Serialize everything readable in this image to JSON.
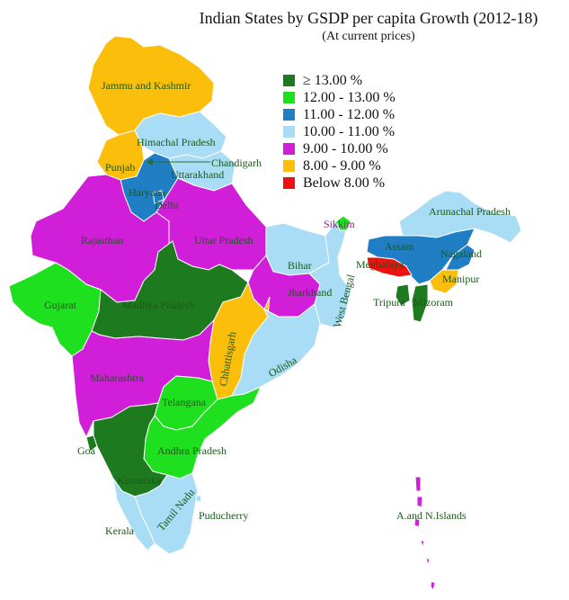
{
  "title": "Indian States by GSDP per capita Growth (2012-18)",
  "subtitle": "(At current prices)",
  "colors": {
    "c13plus": "#1e7a1e",
    "c12_13": "#1fe01f",
    "c11_12": "#1f7ec4",
    "c10_11": "#a9dcf5",
    "c9_10": "#d11fd9",
    "c8_9": "#fbbf0b",
    "below8": "#ef1010"
  },
  "legend": [
    {
      "label": "≥ 13.00 %",
      "color": "#1e7a1e"
    },
    {
      "label": "12.00 - 13.00 %",
      "color": "#1fe01f"
    },
    {
      "label": "11.00 - 12.00 %",
      "color": "#1f7ec4"
    },
    {
      "label": "10.00 - 11.00 %",
      "color": "#a9dcf5"
    },
    {
      "label": "9.00 - 10.00 %",
      "color": "#d11fd9"
    },
    {
      "label": "8.00 - 9.00 %",
      "color": "#fbbf0b"
    },
    {
      "label": "Below 8.00 %",
      "color": "#ef1010"
    }
  ],
  "regions": {
    "jk": {
      "name": "Jammu and Kashmir",
      "category": "8.00 - 9.00 %"
    },
    "hp": {
      "name": "Himachal Pradesh",
      "category": "10.00 - 11.00 %"
    },
    "pb": {
      "name": "Punjab",
      "category": "8.00 - 9.00 %"
    },
    "ch": {
      "name": "Chandigarh",
      "category": "10.00 - 11.00 %"
    },
    "uk": {
      "name": "Uttarakhand",
      "category": "10.00 - 11.00 %"
    },
    "hr": {
      "name": "Haryana",
      "category": "11.00 - 12.00 %"
    },
    "dl": {
      "name": "Delhi",
      "category": "11.00 - 12.00 %"
    },
    "rj": {
      "name": "Rajasthan",
      "category": "9.00 - 10.00 %"
    },
    "up": {
      "name": "Uttar Pradesh",
      "category": "9.00 - 10.00 %"
    },
    "gj": {
      "name": "Gujarat",
      "category": "12.00 - 13.00 %"
    },
    "mp": {
      "name": "Madhya Pradesh",
      "category": "≥ 13.00 %"
    },
    "br": {
      "name": "Bihar",
      "category": "10.00 - 11.00 %"
    },
    "jh": {
      "name": "Jharkhand",
      "category": "9.00 - 10.00 %"
    },
    "wb": {
      "name": "West Bengal",
      "category": "10.00 - 11.00 %"
    },
    "cg": {
      "name": "Chhattisgarh",
      "category": "8.00 - 9.00 %"
    },
    "od": {
      "name": "Odisha",
      "category": "10.00 - 11.00 %"
    },
    "mh": {
      "name": "Maharashtra",
      "category": "9.00 - 10.00 %"
    },
    "tg": {
      "name": "Telangana",
      "category": "12.00 - 13.00 %"
    },
    "ap": {
      "name": "Andhra Pradesh",
      "category": "12.00 - 13.00 %"
    },
    "ga": {
      "name": "Goa",
      "category": "≥ 13.00 %"
    },
    "ka": {
      "name": "Karnataka",
      "category": "≥ 13.00 %"
    },
    "tn": {
      "name": "Tamil Nadu",
      "category": "10.00 - 11.00 %"
    },
    "kl": {
      "name": "Kerala",
      "category": "10.00 - 11.00 %"
    },
    "py": {
      "name": "Puducherry",
      "category": "10.00 - 11.00 %"
    },
    "sk": {
      "name": "Sikkim",
      "category": "12.00 - 13.00 %"
    },
    "ar": {
      "name": "Arunachal Pradesh",
      "category": "10.00 - 11.00 %"
    },
    "as": {
      "name": "Assam",
      "category": "11.00 - 12.00 %"
    },
    "ml": {
      "name": "Meghalaya",
      "category": "Below 8.00 %"
    },
    "nl": {
      "name": "Nagaland",
      "category": "11.00 - 12.00 %"
    },
    "mn": {
      "name": "Manipur",
      "category": "8.00 - 9.00 %"
    },
    "tr": {
      "name": "Tripura",
      "category": "≥ 13.00 %"
    },
    "mz": {
      "name": "Mizoram",
      "category": "≥ 13.00 %"
    },
    "an": {
      "name": "A.and N.Islands",
      "category": "9.00 - 10.00 %"
    }
  }
}
